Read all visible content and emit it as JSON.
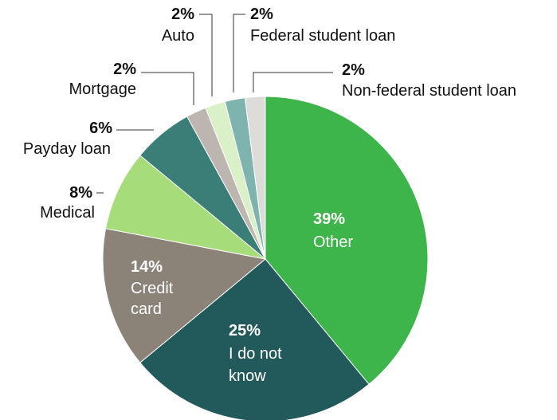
{
  "chart_data": {
    "type": "pie",
    "slices": [
      {
        "label": "Other",
        "value": 39,
        "display": "39%",
        "color": "#3db54a"
      },
      {
        "label": "I do not know",
        "value": 25,
        "display": "25%",
        "color": "#22595a"
      },
      {
        "label": "Credit card",
        "value": 14,
        "display": "14%",
        "color": "#8b8278"
      },
      {
        "label": "Medical",
        "value": 8,
        "display": "8%",
        "color": "#a6dc7a"
      },
      {
        "label": "Payday loan",
        "value": 6,
        "display": "6%",
        "color": "#3b7e78"
      },
      {
        "label": "Mortgage",
        "value": 2,
        "display": "2%",
        "color": "#bdb6b0"
      },
      {
        "label": "Auto",
        "value": 2,
        "display": "2%",
        "color": "#daf0c8"
      },
      {
        "label": "Federal student loan",
        "value": 2,
        "display": "2%",
        "color": "#7fb4ae"
      },
      {
        "label": "Non-federal student loan",
        "value": 2,
        "display": "2%",
        "color": "#dcdcd8"
      }
    ]
  }
}
